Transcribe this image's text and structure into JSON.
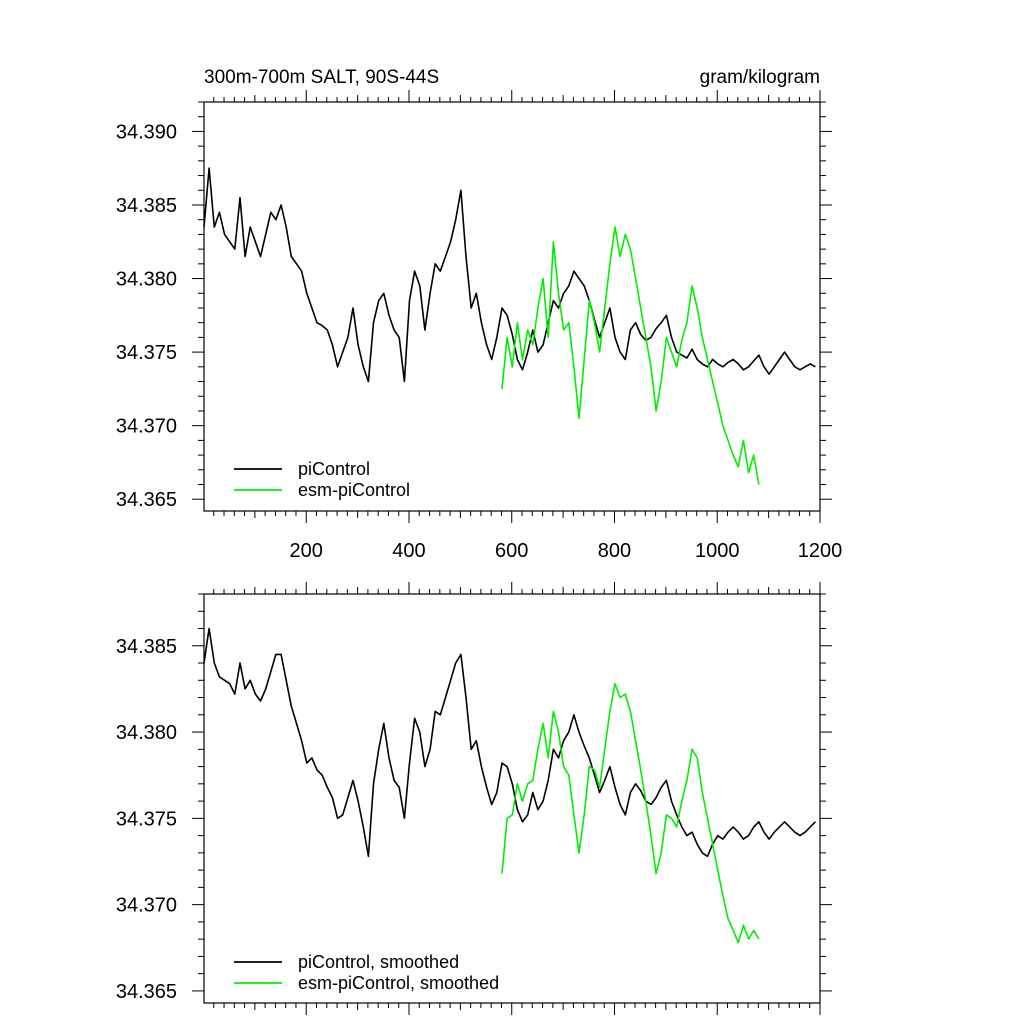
{
  "figure": {
    "title_left": "300m-700m SALT, 90S-44S",
    "title_right": "gram/kilogram"
  },
  "colors": {
    "piControl": "#000000",
    "esm_piControl": "#00ee00",
    "axis": "#000000",
    "background": "#ffffff"
  },
  "chart_data": [
    {
      "type": "line",
      "title": "300m-700m SALT, 90S-44S",
      "units": "gram/kilogram",
      "xlim": [
        1,
        1200
      ],
      "ylim": [
        34.3642,
        34.392
      ],
      "xticks": [
        200,
        400,
        600,
        800,
        1000,
        1200
      ],
      "xtick_labels": [
        "200",
        "400",
        "600",
        "800",
        "1000",
        "1200"
      ],
      "yticks": [
        34.365,
        34.37,
        34.375,
        34.38,
        34.385,
        34.39
      ],
      "ytick_labels": [
        "34.365",
        "34.370",
        "34.375",
        "34.380",
        "34.385",
        "34.390"
      ],
      "grid": false,
      "legend_position": "bottom-left",
      "legend": [
        "piControl",
        "esm-piControl"
      ],
      "series": [
        {
          "name": "piControl",
          "x_start": 1,
          "x_step": 10,
          "values": [
            34.3835,
            34.3875,
            34.3835,
            34.3845,
            34.383,
            34.3825,
            34.382,
            34.3855,
            34.3815,
            34.3835,
            34.3825,
            34.3815,
            34.383,
            34.3845,
            34.384,
            34.385,
            34.3835,
            34.3815,
            34.381,
            34.3805,
            34.379,
            34.378,
            34.377,
            34.3768,
            34.3765,
            34.3755,
            34.374,
            34.375,
            34.376,
            34.378,
            34.3755,
            34.374,
            34.373,
            34.377,
            34.3785,
            34.379,
            34.3775,
            34.3765,
            34.376,
            34.373,
            34.3785,
            34.3805,
            34.3795,
            34.3765,
            34.379,
            34.381,
            34.3805,
            34.3815,
            34.3825,
            34.384,
            34.386,
            34.3815,
            34.378,
            34.379,
            34.377,
            34.3755,
            34.3745,
            34.376,
            34.378,
            34.3775,
            34.3762,
            34.3745,
            34.3738,
            34.375,
            34.3765,
            34.375,
            34.3755,
            34.377,
            34.3785,
            34.378,
            34.379,
            34.3795,
            34.3805,
            34.38,
            34.3795,
            34.3785,
            34.3772,
            34.376,
            34.377,
            34.378,
            34.376,
            34.375,
            34.3745,
            34.3765,
            34.377,
            34.3762,
            34.3758,
            34.376,
            34.3766,
            34.377,
            34.3775,
            34.376,
            34.375,
            34.3748,
            34.3746,
            34.3752,
            34.3745,
            34.3742,
            34.374,
            34.3745,
            34.3742,
            34.374,
            34.3743,
            34.3745,
            34.3742,
            34.3738,
            34.374,
            34.3744,
            34.3748,
            34.374,
            34.3735,
            34.374,
            34.3745,
            34.375,
            34.3745,
            34.374,
            34.3738,
            34.374,
            34.3742,
            34.374
          ]
        },
        {
          "name": "esm-piControl",
          "x_start": 581,
          "x_step": 10,
          "values": [
            34.3725,
            34.376,
            34.374,
            34.377,
            34.3745,
            34.3765,
            34.3755,
            34.378,
            34.38,
            34.376,
            34.3825,
            34.379,
            34.3765,
            34.377,
            34.374,
            34.3705,
            34.3745,
            34.3785,
            34.377,
            34.375,
            34.378,
            34.381,
            34.3835,
            34.3815,
            34.383,
            34.382,
            34.38,
            34.378,
            34.376,
            34.374,
            34.371,
            34.373,
            34.376,
            34.375,
            34.374,
            34.3758,
            34.377,
            34.3795,
            34.378,
            34.376,
            34.3745,
            34.373,
            34.3715,
            34.37,
            34.369,
            34.368,
            34.3672,
            34.369,
            34.3668,
            34.368,
            34.366
          ]
        }
      ]
    },
    {
      "type": "line",
      "xlim": [
        1,
        1200
      ],
      "ylim": [
        34.3643,
        34.388
      ],
      "xticks": [
        200,
        400,
        600,
        800,
        1000,
        1200
      ],
      "xtick_labels": [],
      "yticks": [
        34.365,
        34.37,
        34.375,
        34.38,
        34.385
      ],
      "ytick_labels": [
        "34.365",
        "34.370",
        "34.375",
        "34.380",
        "34.385"
      ],
      "grid": false,
      "legend_position": "bottom-left",
      "legend": [
        "piControl, smoothed",
        "esm-piControl, smoothed"
      ],
      "series": [
        {
          "name": "piControl, smoothed",
          "x_start": 1,
          "x_step": 10,
          "values": [
            34.384,
            34.386,
            34.384,
            34.3832,
            34.383,
            34.3828,
            34.3822,
            34.384,
            34.3825,
            34.383,
            34.3822,
            34.3818,
            34.3825,
            34.3835,
            34.3845,
            34.3845,
            34.383,
            34.3815,
            34.3805,
            34.3795,
            34.3782,
            34.3785,
            34.3778,
            34.3775,
            34.3768,
            34.3762,
            34.375,
            34.3752,
            34.3762,
            34.3772,
            34.376,
            34.3745,
            34.3728,
            34.377,
            34.379,
            34.3805,
            34.3785,
            34.3772,
            34.3768,
            34.375,
            34.3782,
            34.3808,
            34.38,
            34.378,
            34.379,
            34.3812,
            34.381,
            34.382,
            34.383,
            34.384,
            34.3845,
            34.382,
            34.379,
            34.3795,
            34.378,
            34.3768,
            34.3758,
            34.3765,
            34.3782,
            34.378,
            34.377,
            34.3755,
            34.3748,
            34.3752,
            34.3765,
            34.3755,
            34.376,
            34.3772,
            34.379,
            34.3785,
            34.3795,
            34.38,
            34.381,
            34.38,
            34.3792,
            34.3785,
            34.3775,
            34.3765,
            34.3772,
            34.378,
            34.3768,
            34.3758,
            34.3752,
            34.3765,
            34.377,
            34.3766,
            34.376,
            34.3758,
            34.3762,
            34.3768,
            34.3772,
            34.376,
            34.3752,
            34.3745,
            34.374,
            34.3742,
            34.3735,
            34.373,
            34.3728,
            34.3735,
            34.374,
            34.3738,
            34.3742,
            34.3745,
            34.3742,
            34.3738,
            34.374,
            34.3745,
            34.3748,
            34.3742,
            34.3738,
            34.3742,
            34.3745,
            34.3748,
            34.3745,
            34.3742,
            34.374,
            34.3742,
            34.3745,
            34.3748
          ]
        },
        {
          "name": "esm-piControl, smoothed",
          "x_start": 581,
          "x_step": 10,
          "values": [
            34.3718,
            34.375,
            34.3752,
            34.377,
            34.376,
            34.377,
            34.3772,
            34.379,
            34.3805,
            34.3785,
            34.3812,
            34.38,
            34.378,
            34.3775,
            34.3752,
            34.373,
            34.3752,
            34.378,
            34.3778,
            34.3768,
            34.379,
            34.3812,
            34.3828,
            34.382,
            34.3822,
            34.3812,
            34.3795,
            34.3778,
            34.376,
            34.374,
            34.3718,
            34.373,
            34.3752,
            34.375,
            34.3745,
            34.376,
            34.3772,
            34.379,
            34.3785,
            34.3765,
            34.375,
            34.3735,
            34.372,
            34.3705,
            34.3692,
            34.3685,
            34.3678,
            34.3688,
            34.368,
            34.3685,
            34.368
          ]
        }
      ]
    }
  ]
}
